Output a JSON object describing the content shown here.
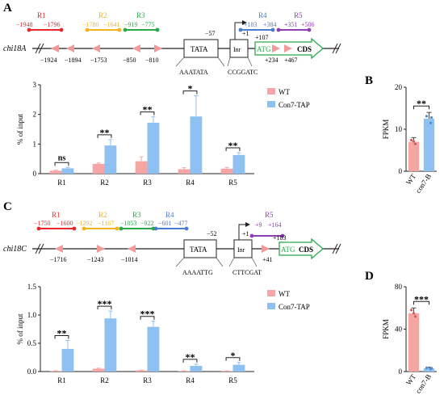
{
  "panels": {
    "A": "A",
    "B": "B",
    "C": "C",
    "D": "D"
  },
  "colors": {
    "r1": "#e8262b",
    "r2": "#f2b21b",
    "r3": "#2aa84a",
    "r4": "#4a7bd0",
    "r5": "#8e3fb5",
    "triangle": "#f09a9a",
    "cds": "#2aa84a",
    "wt": "#f6a5a5",
    "tap": "#8ec0f2"
  },
  "diagramA": {
    "gene": "chi18A",
    "regions": [
      {
        "id": "R1",
        "label": "R1",
        "start": "−1948",
        "end": "−1796"
      },
      {
        "id": "R2",
        "label": "R2",
        "start": "−1780",
        "end": "−1641"
      },
      {
        "id": "R3",
        "label": "R3",
        "start": "−919",
        "end": "−775"
      },
      {
        "id": "R4",
        "label": "R4",
        "start": "+183",
        "end": "+384"
      },
      {
        "id": "R5",
        "label": "R5",
        "start": "+351",
        "end": "+506"
      }
    ],
    "sites": [
      "−1924",
      "−1894",
      "−1753",
      "−850",
      "−810",
      "+234",
      "+467"
    ],
    "tata": "TATA",
    "tata_pos": "−57",
    "tata_seq": "AAATATA",
    "inr": "Inr",
    "inr_seq": "CCGGATC",
    "tss": "+1",
    "tss2": "+107",
    "atg": "ATG",
    "cds": "CDS"
  },
  "diagramC": {
    "gene": "chi18C",
    "regions": [
      {
        "id": "R1",
        "label": "R1",
        "start": "−1750",
        "end": "−1600"
      },
      {
        "id": "R2",
        "label": "R2",
        "start": "−1292",
        "end": "−1167"
      },
      {
        "id": "R3",
        "label": "R3",
        "start": "−1053",
        "end": "−922"
      },
      {
        "id": "R4",
        "label": "R4",
        "start": "−601",
        "end": "−477"
      },
      {
        "id": "R5",
        "label": "R5",
        "start": "+9",
        "end": "+164"
      }
    ],
    "sites": [
      "−1716",
      "−1243",
      "−1014",
      "+41"
    ],
    "tata": "TATA",
    "tata_pos": "−52",
    "tata_seq": "AAAATTG",
    "inr": "Inr",
    "inr_seq": "CTTCGAT",
    "tss": "+1",
    "extra": "+183",
    "atg": "ATG",
    "cds": "CDS"
  },
  "chart_data": [
    {
      "id": "A-chip",
      "type": "bar",
      "ylabel": "% of input",
      "ylim": [
        0,
        3
      ],
      "yticks": [
        "0",
        "1",
        "2",
        "3"
      ],
      "categories": [
        "R1",
        "R2",
        "R3",
        "R4",
        "R5"
      ],
      "series": [
        {
          "name": "WT",
          "values": [
            0.1,
            0.33,
            0.42,
            0.15,
            0.17
          ],
          "errors": [
            0.02,
            0.03,
            0.15,
            0.05,
            0.04
          ]
        },
        {
          "name": "Con7-TAP",
          "values": [
            0.18,
            0.95,
            1.72,
            1.93,
            0.63
          ],
          "errors": [
            0.03,
            0.2,
            0.2,
            0.7,
            0.08
          ]
        }
      ],
      "significance": [
        "ns",
        "**",
        "**",
        "*",
        "**"
      ]
    },
    {
      "id": "B-fpkm",
      "type": "bar",
      "ylabel": "FPKM",
      "ylim": [
        0,
        20
      ],
      "yticks": [
        "0",
        "10",
        "20"
      ],
      "categories": [
        "WT",
        "con7-B"
      ],
      "values": [
        7,
        12.5
      ],
      "errors": [
        1,
        1.5
      ],
      "significance": [
        "**"
      ]
    },
    {
      "id": "C-chip",
      "type": "bar",
      "ylabel": "% of input",
      "ylim": [
        0,
        1.5
      ],
      "yticks": [
        "0.0",
        "0.5",
        "1.0",
        "1.5"
      ],
      "categories": [
        "R1",
        "R2",
        "R3",
        "R4",
        "R5"
      ],
      "series": [
        {
          "name": "WT",
          "values": [
            0.01,
            0.05,
            0.02,
            0.01,
            0.01
          ],
          "errors": [
            0.005,
            0.01,
            0.005,
            0.003,
            0.003
          ]
        },
        {
          "name": "Con7-TAP",
          "values": [
            0.4,
            0.94,
            0.79,
            0.1,
            0.12
          ],
          "errors": [
            0.15,
            0.13,
            0.1,
            0.03,
            0.04
          ]
        }
      ],
      "significance": [
        "**",
        "***",
        "***",
        "**",
        "*"
      ]
    },
    {
      "id": "D-fpkm",
      "type": "bar",
      "ylabel": "FPKM",
      "ylim": [
        0,
        80
      ],
      "yticks": [
        "0",
        "40",
        "80"
      ],
      "categories": [
        "WT",
        "con7-B"
      ],
      "values": [
        55,
        3
      ],
      "errors": [
        5,
        1
      ],
      "significance": [
        "***"
      ]
    }
  ]
}
